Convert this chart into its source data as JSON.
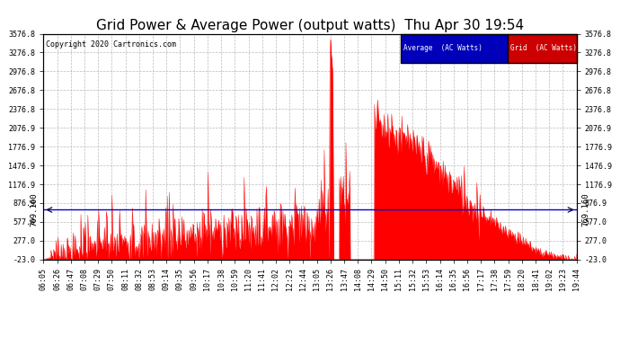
{
  "title": "Grid Power & Average Power (output watts)  Thu Apr 30 19:54",
  "copyright": "Copyright 2020 Cartronics.com",
  "average_value": 769.16,
  "average_label": "769.160",
  "ylim": [
    -23.0,
    3576.8
  ],
  "yticks": [
    -23.0,
    277.0,
    577.0,
    876.9,
    1176.9,
    1476.9,
    1776.9,
    2076.9,
    2376.8,
    2676.8,
    2976.8,
    3276.8,
    3576.8
  ],
  "grid_color": "#aaaaaa",
  "bg_color": "#ffffff",
  "fill_color": "#ff0000",
  "line_color": "#ff0000",
  "average_line_color": "#0000cc",
  "legend_avg_bg": "#0000bb",
  "legend_grid_bg": "#cc0000",
  "title_fontsize": 11,
  "tick_fontsize": 6,
  "x_tick_labels": [
    "06:05",
    "06:26",
    "06:47",
    "07:08",
    "07:29",
    "07:50",
    "08:11",
    "08:32",
    "08:53",
    "09:14",
    "09:35",
    "09:56",
    "10:17",
    "10:38",
    "10:59",
    "11:20",
    "11:41",
    "12:02",
    "12:23",
    "12:44",
    "13:05",
    "13:26",
    "13:47",
    "14:08",
    "14:29",
    "14:50",
    "15:11",
    "15:32",
    "15:53",
    "16:14",
    "16:35",
    "16:56",
    "17:17",
    "17:38",
    "17:59",
    "18:20",
    "18:41",
    "19:02",
    "19:23",
    "19:44"
  ]
}
